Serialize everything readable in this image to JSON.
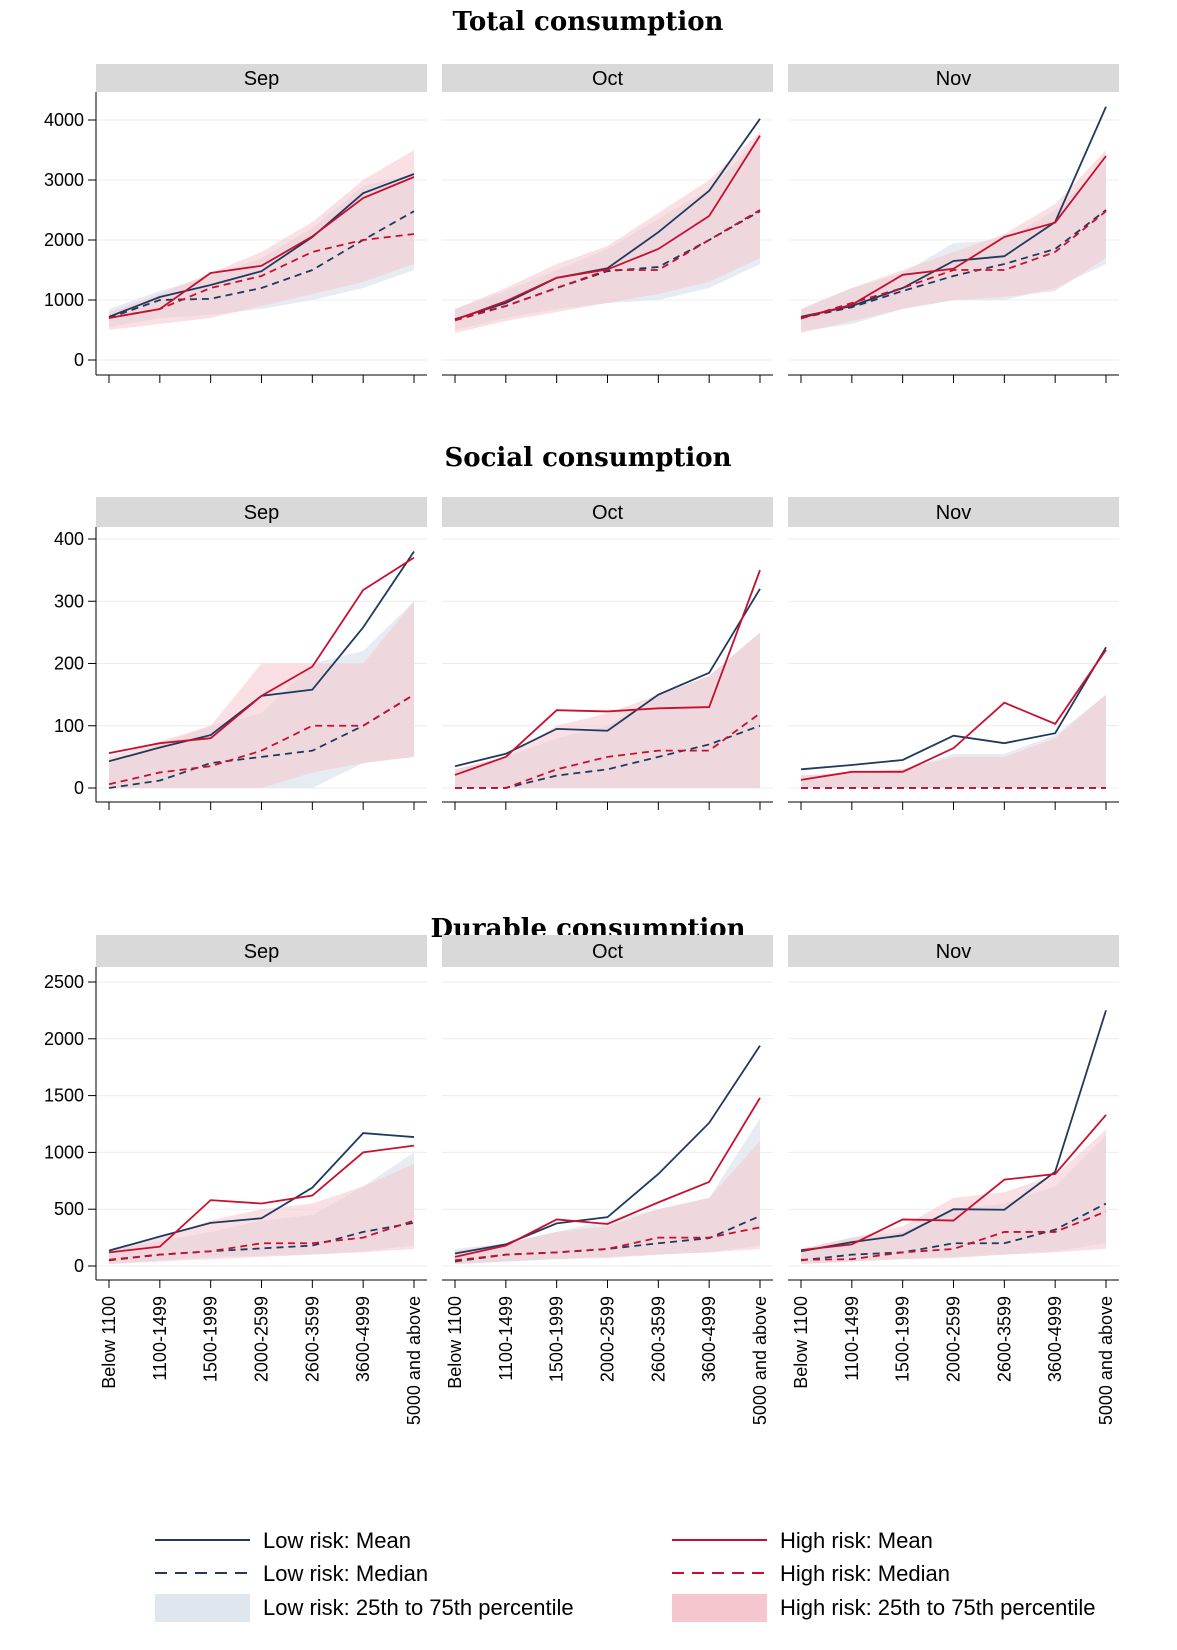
{
  "colors": {
    "low_risk": "#1f3a5f",
    "high_risk": "#c8102e",
    "low_band": "#dfe6ee",
    "high_band": "#f5c6ce",
    "strip": "#d9d9d9"
  },
  "legend": {
    "low_mean": "Low risk: Mean",
    "low_median": "Low risk: Median",
    "low_band": "Low risk: 25th to 75th percentile",
    "high_mean": "High risk: Mean",
    "high_median": "High risk: Median",
    "high_band": "High risk: 25th to 75th percentile"
  },
  "chart_data": [
    {
      "type": "line",
      "title": "Total consumption",
      "categories": [
        "Below 1100",
        "1100-1499",
        "1500-1999",
        "2000-2599",
        "2600-3599",
        "3600-4999",
        "5000 and above"
      ],
      "ylim": [
        0,
        4000
      ],
      "yticks": [
        0,
        1000,
        2000,
        3000,
        4000
      ],
      "facets": [
        {
          "label": "Sep",
          "low": {
            "mean": [
              720,
              1050,
              1250,
              1480,
              2050,
              2780,
              3100
            ],
            "median": [
              700,
              1000,
              1020,
              1200,
              1500,
              2000,
              2480
            ],
            "p25": [
              550,
              700,
              750,
              850,
              1000,
              1200,
              1500
            ],
            "p75": [
              850,
              1150,
              1400,
              1700,
              2200,
              2900,
              3100
            ]
          },
          "high": {
            "mean": [
              700,
              850,
              1450,
              1570,
              2060,
              2700,
              3050
            ],
            "median": [
              700,
              850,
              1200,
              1400,
              1800,
              2000,
              2100
            ],
            "p25": [
              500,
              600,
              700,
              900,
              1100,
              1300,
              1600
            ],
            "p75": [
              800,
              1100,
              1450,
              1800,
              2300,
              3000,
              3500
            ]
          }
        },
        {
          "label": "Oct",
          "low": {
            "mean": [
              680,
              950,
              1370,
              1530,
              2130,
              2820,
              4020
            ],
            "median": [
              680,
              900,
              1200,
              1480,
              1550,
              2000,
              2480
            ],
            "p25": [
              500,
              700,
              850,
              950,
              1000,
              1200,
              1600
            ],
            "p75": [
              850,
              1150,
              1500,
              1850,
              2350,
              2850,
              3700
            ]
          },
          "high": {
            "mean": [
              670,
              980,
              1370,
              1510,
              1850,
              2400,
              3740
            ],
            "median": [
              660,
              900,
              1200,
              1500,
              1500,
              2000,
              2500
            ],
            "p25": [
              450,
              650,
              800,
              950,
              1100,
              1300,
              1700
            ],
            "p75": [
              850,
              1200,
              1600,
              1900,
              2450,
              3000,
              3800
            ]
          }
        },
        {
          "label": "Nov",
          "low": {
            "mean": [
              720,
              900,
              1200,
              1650,
              1730,
              2300,
              4220
            ],
            "median": [
              700,
              880,
              1150,
              1400,
              1600,
              1850,
              2500
            ],
            "p25": [
              480,
              600,
              850,
              1000,
              1000,
              1200,
              1600
            ],
            "p75": [
              850,
              1200,
              1450,
              1950,
              2000,
              2500,
              3300
            ]
          },
          "high": {
            "mean": [
              700,
              920,
              1420,
              1520,
              2050,
              2290,
              3400
            ],
            "median": [
              690,
              950,
              1200,
              1500,
              1500,
              1800,
              2480
            ],
            "p25": [
              450,
              650,
              850,
              1000,
              1050,
              1150,
              1700
            ],
            "p75": [
              850,
              1200,
              1500,
              1800,
              2100,
              2600,
              3500
            ]
          }
        }
      ]
    },
    {
      "type": "line",
      "title": "Social consumption",
      "categories": [
        "Below 1100",
        "1100-1499",
        "1500-1999",
        "2000-2599",
        "2600-3599",
        "3600-4999",
        "5000 and above"
      ],
      "ylim": [
        0,
        400
      ],
      "yticks": [
        0,
        100,
        200,
        300,
        400
      ],
      "facets": [
        {
          "label": "Sep",
          "low": {
            "mean": [
              43,
              65,
              85,
              148,
              158,
              258,
              380
            ],
            "median": [
              0,
              12,
              40,
              50,
              60,
              100,
              150
            ],
            "p25": [
              0,
              0,
              0,
              0,
              0,
              40,
              50
            ],
            "p75": [
              40,
              70,
              100,
              120,
              200,
              220,
              300
            ]
          },
          "high": {
            "mean": [
              56,
              72,
              80,
              148,
              195,
              318,
              370
            ],
            "median": [
              6,
              25,
              35,
              60,
              100,
              100,
              150
            ],
            "p25": [
              0,
              0,
              0,
              0,
              25,
              40,
              50
            ],
            "p75": [
              50,
              75,
              100,
              200,
              200,
              200,
              300
            ]
          }
        },
        {
          "label": "Oct",
          "low": {
            "mean": [
              35,
              55,
              95,
              92,
              150,
              185,
              320
            ],
            "median": [
              0,
              0,
              20,
              30,
              50,
              70,
              100
            ],
            "p25": [
              0,
              0,
              0,
              0,
              0,
              0,
              0
            ],
            "p75": [
              30,
              50,
              80,
              100,
              150,
              180,
              250
            ]
          },
          "high": {
            "mean": [
              21,
              50,
              125,
              123,
              128,
              130,
              350
            ],
            "median": [
              0,
              0,
              30,
              50,
              60,
              60,
              120
            ],
            "p25": [
              0,
              0,
              0,
              0,
              0,
              0,
              0
            ],
            "p75": [
              30,
              50,
              100,
              120,
              150,
              180,
              250
            ]
          }
        },
        {
          "label": "Nov",
          "low": {
            "mean": [
              30,
              37,
              45,
              84,
              72,
              88,
              226
            ],
            "median": [
              0,
              0,
              0,
              0,
              0,
              0,
              0
            ],
            "p25": [
              0,
              0,
              0,
              0,
              0,
              0,
              0
            ],
            "p75": [
              20,
              25,
              30,
              55,
              55,
              85,
              150
            ]
          },
          "high": {
            "mean": [
              13,
              26,
              26,
              64,
              137,
              103,
              222
            ],
            "median": [
              0,
              0,
              0,
              0,
              0,
              0,
              0
            ],
            "p25": [
              0,
              0,
              0,
              0,
              0,
              0,
              0
            ],
            "p75": [
              20,
              25,
              30,
              50,
              50,
              80,
              150
            ]
          }
        }
      ]
    },
    {
      "type": "line",
      "title": "Durable consumption",
      "categories": [
        "Below 1100",
        "1100-1499",
        "1500-1999",
        "2000-2599",
        "2600-3599",
        "3600-4999",
        "5000 and above"
      ],
      "ylim": [
        0,
        2500
      ],
      "yticks": [
        0,
        500,
        1000,
        1500,
        2000,
        2500
      ],
      "facets": [
        {
          "label": "Sep",
          "low": {
            "mean": [
              135,
              260,
              380,
              420,
              690,
              1170,
              1135
            ],
            "median": [
              50,
              100,
              130,
              155,
              180,
              300,
              380
            ],
            "p25": [
              20,
              50,
              80,
              90,
              100,
              130,
              180
            ],
            "p75": [
              140,
              220,
              300,
              400,
              450,
              700,
              1000
            ]
          },
          "high": {
            "mean": [
              120,
              170,
              580,
              550,
              620,
              1000,
              1060
            ],
            "median": [
              55,
              100,
              130,
              200,
              200,
              250,
              400
            ],
            "p25": [
              15,
              40,
              60,
              80,
              100,
              120,
              150
            ],
            "p75": [
              150,
              250,
              400,
              500,
              550,
              700,
              900
            ]
          }
        },
        {
          "label": "Oct",
          "low": {
            "mean": [
              110,
              190,
              375,
              430,
              810,
              1260,
              1940
            ],
            "median": [
              40,
              100,
              120,
              150,
              200,
              245,
              440
            ],
            "p25": [
              20,
              40,
              60,
              80,
              100,
              120,
              180
            ],
            "p75": [
              150,
              200,
              300,
              400,
              500,
              600,
              1300
            ]
          },
          "high": {
            "mean": [
              80,
              180,
              410,
              370,
              560,
              740,
              1480
            ],
            "median": [
              50,
              100,
              120,
              150,
              250,
              250,
              340
            ],
            "p25": [
              15,
              40,
              60,
              70,
              100,
              120,
              150
            ],
            "p75": [
              130,
              200,
              300,
              350,
              500,
              600,
              1100
            ]
          }
        },
        {
          "label": "Nov",
          "low": {
            "mean": [
              130,
              210,
              270,
              500,
              495,
              830,
              2250
            ],
            "median": [
              50,
              100,
              120,
              200,
              200,
              320,
              550
            ],
            "p25": [
              20,
              40,
              60,
              80,
              100,
              130,
              200
            ],
            "p75": [
              150,
              250,
              300,
              500,
              550,
              700,
              1150
            ]
          },
          "high": {
            "mean": [
              140,
              190,
              410,
              400,
              760,
              810,
              1330
            ],
            "median": [
              55,
              60,
              120,
              150,
              300,
              300,
              480
            ],
            "p25": [
              15,
              40,
              60,
              70,
              100,
              120,
              150
            ],
            "p75": [
              150,
              250,
              350,
              600,
              650,
              800,
              1200
            ]
          }
        }
      ]
    }
  ]
}
